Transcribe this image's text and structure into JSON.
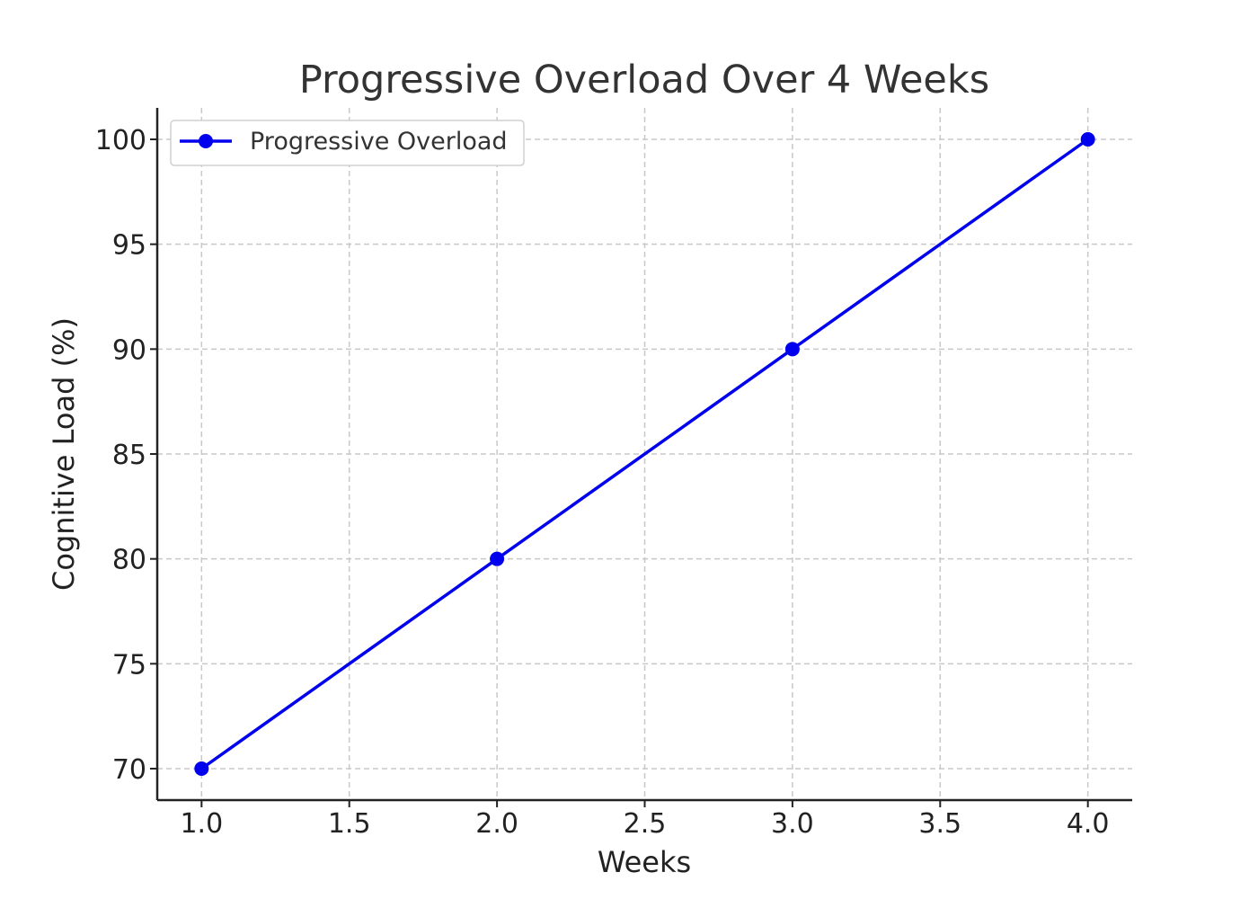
{
  "chart_data": {
    "type": "line",
    "title": "Progressive Overload Over 4 Weeks",
    "xlabel": "Weeks",
    "ylabel": "Cognitive Load (%)",
    "x": [
      1,
      2,
      3,
      4
    ],
    "series": [
      {
        "name": "Progressive Overload",
        "values": [
          70,
          80,
          90,
          100
        ],
        "color": "#0000ee",
        "marker": "circle"
      }
    ],
    "xlim": [
      0.85,
      4.15
    ],
    "ylim": [
      68.5,
      101.5
    ],
    "xticks": [
      1.0,
      1.5,
      2.0,
      2.5,
      3.0,
      3.5,
      4.0
    ],
    "xtick_labels": [
      "1.0",
      "1.5",
      "2.0",
      "2.5",
      "3.0",
      "3.5",
      "4.0"
    ],
    "yticks": [
      70,
      75,
      80,
      85,
      90,
      95,
      100
    ],
    "ytick_labels": [
      "70",
      "75",
      "80",
      "85",
      "90",
      "95",
      "100"
    ],
    "grid": true,
    "legend": "top-left"
  }
}
